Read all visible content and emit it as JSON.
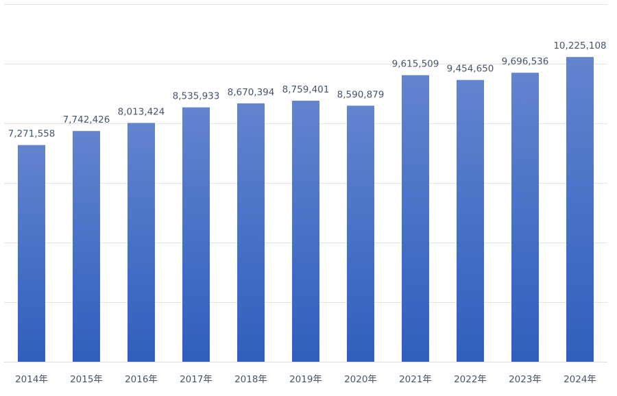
{
  "chart_data": {
    "type": "bar",
    "title": "",
    "xlabel": "",
    "ylabel": "",
    "categories": [
      "2014年",
      "2015年",
      "2016年",
      "2017年",
      "2018年",
      "2019年",
      "2020年",
      "2021年",
      "2022年",
      "2023年",
      "2024年"
    ],
    "values": [
      7271558,
      7742426,
      8013424,
      8535933,
      8670394,
      8759401,
      8590879,
      9615509,
      9454650,
      9696536,
      10225108
    ],
    "data_labels": [
      "7,271,558",
      "7,742,426",
      "8,013,424",
      "8,535,933",
      "8,670,394",
      "8,759,401",
      "8,590,879",
      "9,615,509",
      "9,454,650",
      "9,696,536",
      "10,225,108"
    ],
    "ylim": [
      0,
      12000000
    ],
    "y_gridlines": [
      0,
      2000000,
      4000000,
      6000000,
      8000000,
      10000000,
      12000000
    ],
    "grid": true,
    "legend": "none",
    "colors": {
      "bar_top": "#6384cf",
      "bar_bottom": "#2f5fbd",
      "label_text": "#44546a",
      "grid": "#e3e3e3"
    }
  }
}
